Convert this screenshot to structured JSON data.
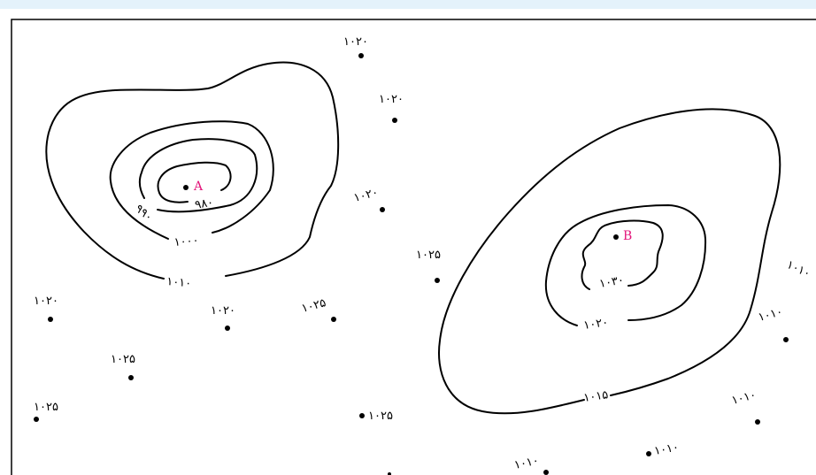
{
  "colors": {
    "line": "#000000",
    "center_label": "#e3157a",
    "frame": "#000000",
    "band": "#e4f2fb"
  },
  "centers": {
    "A": {
      "label": "A"
    },
    "B": {
      "label": "B"
    }
  },
  "isobars": {
    "a_980": "۹۸۰",
    "a_990": "۹۹۰",
    "a_1000": "۱۰۰۰",
    "a_1010": "۱۰۱۰",
    "b_1030": "۱۰۳۰",
    "b_1020": "۱۰۲۰",
    "b_1015": "۱۰۱۵",
    "edge_right": "۱۰۱۰"
  },
  "stations": [
    {
      "label": "۱۰۲۰"
    },
    {
      "label": "۱۰۲۰"
    },
    {
      "label": "۱۰۲۰"
    },
    {
      "label": "۱۰۲۵"
    },
    {
      "label": "۱۰۲۰"
    },
    {
      "label": "۱۰۲۰"
    },
    {
      "label": "۱۰۲۵"
    },
    {
      "label": "۱۰۲۵"
    },
    {
      "label": "۱۰۲۵"
    },
    {
      "label": "۱۰۲۵"
    },
    {
      "label": "۱۰۱۰"
    },
    {
      "label": "۱۰۱۰"
    },
    {
      "label": "۱۰۱۰"
    },
    {
      "label": "۱۰۱۰"
    }
  ]
}
